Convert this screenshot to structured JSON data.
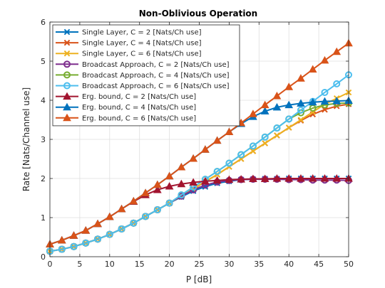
{
  "chart_data": {
    "type": "line",
    "title": "Non-Oblivious Operation",
    "xlabel": "P [dB]",
    "ylabel": "Rate [Nats/Channel use]",
    "xlim": [
      0,
      50
    ],
    "ylim": [
      0,
      6
    ],
    "xticks": [
      0,
      5,
      10,
      15,
      20,
      25,
      30,
      35,
      40,
      45,
      50
    ],
    "yticks": [
      0,
      1,
      2,
      3,
      4,
      5,
      6
    ],
    "grid": true,
    "legend_position": "top-left",
    "x": [
      0,
      2,
      4,
      6,
      8,
      10,
      12,
      14,
      16,
      18,
      20,
      22,
      24,
      26,
      28,
      30,
      32,
      34,
      36,
      38,
      40,
      42,
      44,
      46,
      48,
      50
    ],
    "series": [
      {
        "name": "Single Layer, C = 2 [Nats/Ch use]",
        "color": "#0072BD",
        "marker": "x",
        "values": [
          0.14,
          0.19,
          0.26,
          0.35,
          0.45,
          0.57,
          0.71,
          0.86,
          1.03,
          1.2,
          1.37,
          1.53,
          1.68,
          1.79,
          1.88,
          1.93,
          1.97,
          1.98,
          1.99,
          1.99,
          2.0,
          2.0,
          2.0,
          2.0,
          2.0,
          2.0
        ]
      },
      {
        "name": "Single Layer, C = 4 [Nats/Ch use]",
        "color": "#D95319",
        "marker": "x",
        "values": [
          0.14,
          0.19,
          0.26,
          0.35,
          0.45,
          0.57,
          0.71,
          0.86,
          1.03,
          1.2,
          1.37,
          1.55,
          1.73,
          1.92,
          2.1,
          2.3,
          2.5,
          2.7,
          2.9,
          3.1,
          3.3,
          3.48,
          3.64,
          3.76,
          3.85,
          3.9
        ]
      },
      {
        "name": "Single Layer, C = 6 [Nats/Ch use]",
        "color": "#EDB120",
        "marker": "x",
        "values": [
          0.14,
          0.19,
          0.26,
          0.35,
          0.45,
          0.57,
          0.71,
          0.86,
          1.03,
          1.2,
          1.37,
          1.55,
          1.73,
          1.92,
          2.1,
          2.3,
          2.5,
          2.7,
          2.9,
          3.1,
          3.3,
          3.5,
          3.7,
          3.9,
          4.05,
          4.2
        ]
      },
      {
        "name": "Broadcast Approach, C = 2 [Nats/Ch use]",
        "color": "#7E2F8E",
        "marker": "o",
        "values": [
          0.14,
          0.19,
          0.26,
          0.35,
          0.45,
          0.57,
          0.71,
          0.86,
          1.03,
          1.2,
          1.37,
          1.55,
          1.71,
          1.83,
          1.91,
          1.95,
          1.97,
          1.98,
          1.98,
          1.98,
          1.97,
          1.97,
          1.96,
          1.96,
          1.96,
          1.95
        ]
      },
      {
        "name": "Broadcast Approach, C = 4 [Nats/Ch use]",
        "color": "#77AC30",
        "marker": "o",
        "values": [
          0.14,
          0.19,
          0.26,
          0.35,
          0.45,
          0.57,
          0.71,
          0.86,
          1.03,
          1.2,
          1.37,
          1.58,
          1.78,
          1.98,
          2.18,
          2.39,
          2.61,
          2.83,
          3.06,
          3.29,
          3.52,
          3.68,
          3.8,
          3.88,
          3.92,
          3.93
        ]
      },
      {
        "name": "Broadcast Approach, C = 6 [Nats/Ch use]",
        "color": "#4DBEEE",
        "marker": "o",
        "values": [
          0.14,
          0.19,
          0.26,
          0.35,
          0.45,
          0.57,
          0.71,
          0.86,
          1.03,
          1.2,
          1.37,
          1.58,
          1.78,
          1.98,
          2.18,
          2.39,
          2.61,
          2.83,
          3.06,
          3.29,
          3.52,
          3.75,
          3.97,
          4.2,
          4.42,
          4.65
        ]
      },
      {
        "name": "Erg. bound, C = 2 [Nats/Ch use]",
        "color": "#A2142F",
        "marker": "triangle",
        "values": [
          0.32,
          0.42,
          0.54,
          0.67,
          0.84,
          1.02,
          1.22,
          1.41,
          1.58,
          1.71,
          1.8,
          1.86,
          1.9,
          1.93,
          1.95,
          1.97,
          1.98,
          1.99,
          1.99,
          2.0,
          2.0,
          2.0,
          2.0,
          2.0,
          2.0,
          2.0
        ]
      },
      {
        "name": "Erg. bound, C = 4 [Nats/Ch use]",
        "color": "#0072BD",
        "marker": "triangle",
        "values": [
          0.32,
          0.42,
          0.54,
          0.67,
          0.84,
          1.02,
          1.22,
          1.42,
          1.63,
          1.84,
          2.06,
          2.29,
          2.51,
          2.74,
          2.97,
          3.19,
          3.4,
          3.58,
          3.72,
          3.82,
          3.88,
          3.92,
          3.95,
          3.97,
          3.98,
          3.99
        ]
      },
      {
        "name": "Erg. bound, C = 6 [Nats/Ch use]",
        "color": "#D95319",
        "marker": "triangle",
        "values": [
          0.32,
          0.42,
          0.54,
          0.67,
          0.84,
          1.02,
          1.22,
          1.42,
          1.63,
          1.84,
          2.06,
          2.29,
          2.51,
          2.74,
          2.97,
          3.19,
          3.42,
          3.65,
          3.88,
          4.11,
          4.34,
          4.56,
          4.79,
          5.02,
          5.24,
          5.46
        ]
      }
    ]
  }
}
